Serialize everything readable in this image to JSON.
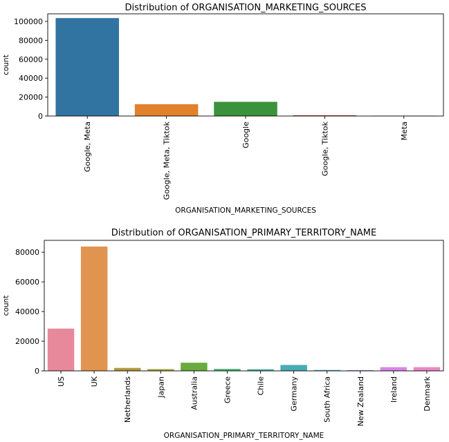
{
  "chart_data": [
    {
      "type": "bar",
      "title": "Distribution of ORGANISATION_MARKETING_SOURCES",
      "xlabel": "ORGANISATION_MARKETING_SOURCES",
      "ylabel": "count",
      "ylim": [
        0,
        108000
      ],
      "yticks": [
        0,
        20000,
        40000,
        60000,
        80000,
        100000
      ],
      "categories": [
        "Google, Meta",
        "Google, Meta, Tiktok",
        "Google",
        "Google, Tiktok",
        "Meta"
      ],
      "values": [
        103500,
        12500,
        15000,
        800,
        400
      ],
      "colors": [
        "#3274a1",
        "#e1812c",
        "#3a923a",
        "#c03d3e",
        "#9372b2"
      ],
      "grid": false
    },
    {
      "type": "bar",
      "title": "Distribution of ORGANISATION_PRIMARY_TERRITORY_NAME",
      "xlabel": "ORGANISATION_PRIMARY_TERRITORY_NAME",
      "ylabel": "count",
      "ylim": [
        0,
        88000
      ],
      "yticks": [
        0,
        20000,
        40000,
        60000,
        80000
      ],
      "categories": [
        "US",
        "UK",
        "Netherlands",
        "Japan",
        "Australia",
        "Greece",
        "Chile",
        "Germany",
        "South Africa",
        "New Zealand",
        "Ireland",
        "Denmark"
      ],
      "values": [
        28500,
        83800,
        2000,
        1200,
        5500,
        1300,
        1100,
        4000,
        600,
        500,
        2500,
        2500
      ],
      "colors": [
        "#e8899b",
        "#e0944f",
        "#b39a3d",
        "#a4a43a",
        "#6aaa3e",
        "#47b074",
        "#4aae9d",
        "#49acb5",
        "#52a8d4",
        "#9d94e8",
        "#d986e8",
        "#ec87c4"
      ],
      "grid": false
    }
  ]
}
